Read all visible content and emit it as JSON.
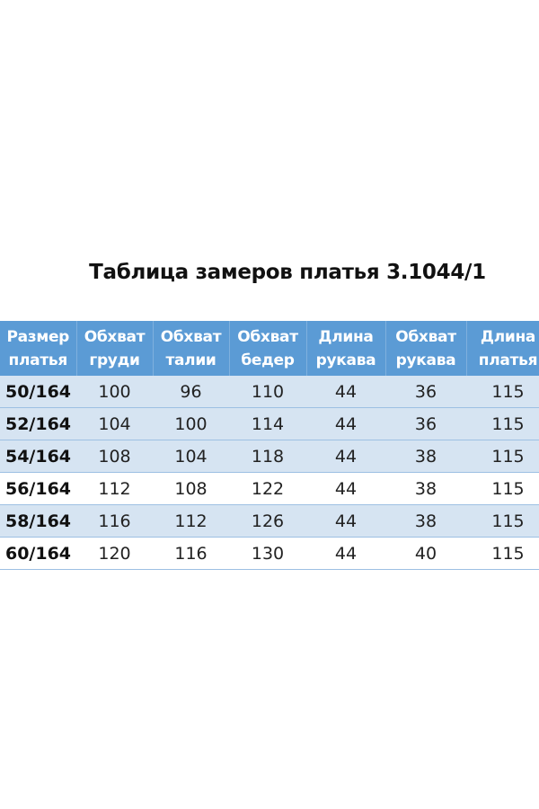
{
  "title": "Таблица замеров платья 3.1044/1",
  "table": {
    "headers": [
      [
        "Размер",
        "платья"
      ],
      [
        "Обхват",
        "груди"
      ],
      [
        "Обхват",
        "талии"
      ],
      [
        "Обхват",
        "бедер"
      ],
      [
        "Длина",
        "рукава"
      ],
      [
        "Обхват",
        "рукава"
      ],
      [
        "Длина",
        "платья"
      ]
    ],
    "rows": [
      [
        "50/164",
        "100",
        "96",
        "110",
        "44",
        "36",
        "115"
      ],
      [
        "52/164",
        "104",
        "100",
        "114",
        "44",
        "36",
        "115"
      ],
      [
        "54/164",
        "108",
        "104",
        "118",
        "44",
        "38",
        "115"
      ],
      [
        "56/164",
        "112",
        "108",
        "122",
        "44",
        "38",
        "115"
      ],
      [
        "58/164",
        "116",
        "112",
        "126",
        "44",
        "38",
        "115"
      ],
      [
        "60/164",
        "120",
        "116",
        "130",
        "44",
        "40",
        "115"
      ]
    ],
    "row_shading": [
      "alt",
      "alt",
      "alt",
      "plain",
      "alt",
      "plain"
    ]
  },
  "colors": {
    "header_bg": "#5b9bd5",
    "row_alt_bg": "#d6e4f2",
    "header_text": "#ffffff"
  }
}
